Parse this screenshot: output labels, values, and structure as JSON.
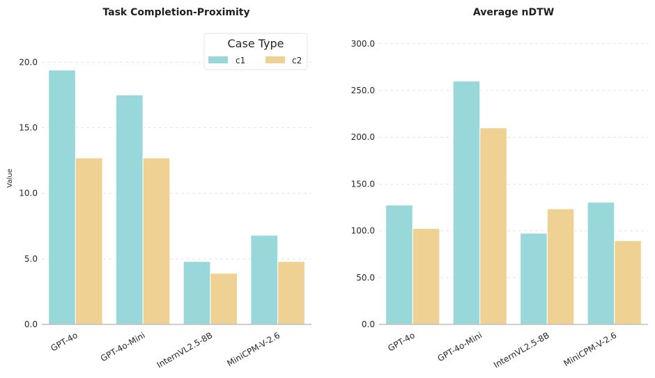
{
  "colors": {
    "c1": "#98d8da",
    "c2": "#efd293",
    "grid": "#e4e4e4",
    "axis": "#bfbfbf"
  },
  "chart_data": [
    {
      "type": "bar",
      "title": "Task Completion-Proximity",
      "ylabel": "Value",
      "categories": [
        "GPT-4o",
        "GPT-4o-Mini",
        "InternVL2.5-8B",
        "MiniCPM-V-2.6"
      ],
      "series": [
        {
          "name": "c1",
          "values": [
            19.4,
            17.5,
            4.8,
            6.8
          ]
        },
        {
          "name": "c2",
          "values": [
            12.7,
            12.7,
            3.9,
            4.8
          ]
        }
      ],
      "yticks": [
        "0.0",
        "5.0",
        "10.0",
        "15.0",
        "20.0"
      ],
      "ylim": [
        0,
        22.2
      ],
      "grid": true,
      "legend": {
        "title": "Case Type",
        "position": "top-right",
        "entries": [
          "c1",
          "c2"
        ]
      }
    },
    {
      "type": "bar",
      "title": "Average nDTW",
      "ylabel": "",
      "categories": [
        "GPT-4o",
        "GPT-4o-Mini",
        "InternVL2.5-8B",
        "MiniCPM-V-2.6"
      ],
      "series": [
        {
          "name": "c1",
          "values": [
            127.5,
            260.0,
            97.5,
            130.5
          ]
        },
        {
          "name": "c2",
          "values": [
            102.5,
            210.0,
            123.5,
            89.5
          ]
        }
      ],
      "yticks": [
        "0.0",
        "50.0",
        "100.0",
        "150.0",
        "200.0",
        "250.0",
        "300.0"
      ],
      "ylim": [
        0,
        311
      ],
      "grid": true
    }
  ]
}
